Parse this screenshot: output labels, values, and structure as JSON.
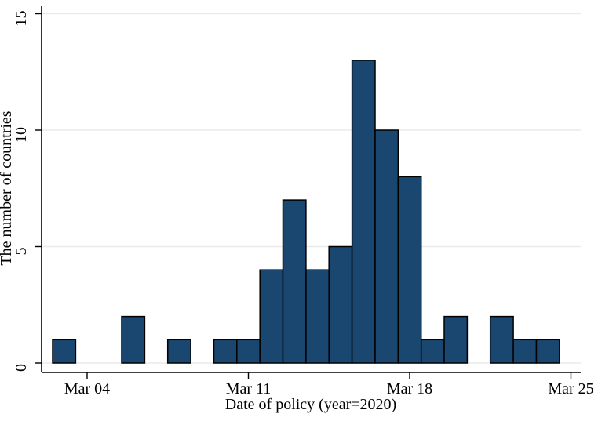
{
  "figure": {
    "background": "#ffffff"
  },
  "chart_data": {
    "type": "bar",
    "subtype": "histogram",
    "title": "",
    "xlabel": "Date of policy (year=2020)",
    "ylabel": "The number of countries",
    "ylim": [
      0,
      15
    ],
    "yticks": [
      0,
      5,
      10,
      15
    ],
    "xticks": [
      {
        "label": "Mar 04",
        "day": 4
      },
      {
        "label": "Mar 11",
        "day": 11
      },
      {
        "label": "Mar 18",
        "day": 18
      },
      {
        "label": "Mar 25",
        "day": 25
      }
    ],
    "grid": "horizontal",
    "legend": "none",
    "bar_color": "#1a476f",
    "bar_edge_color": "#000000",
    "gridline_color": "#eaeaea",
    "axis_color": "#000000",
    "bin_width_days": 1,
    "bins": [
      {
        "date": "Mar 03",
        "day": 3,
        "count": 1
      },
      {
        "date": "Mar 04",
        "day": 4,
        "count": 0
      },
      {
        "date": "Mar 05",
        "day": 5,
        "count": 0
      },
      {
        "date": "Mar 06",
        "day": 6,
        "count": 2
      },
      {
        "date": "Mar 07",
        "day": 7,
        "count": 0
      },
      {
        "date": "Mar 08",
        "day": 8,
        "count": 1
      },
      {
        "date": "Mar 09",
        "day": 9,
        "count": 0
      },
      {
        "date": "Mar 10",
        "day": 10,
        "count": 1
      },
      {
        "date": "Mar 11",
        "day": 11,
        "count": 1
      },
      {
        "date": "Mar 12",
        "day": 12,
        "count": 4
      },
      {
        "date": "Mar 13",
        "day": 13,
        "count": 7
      },
      {
        "date": "Mar 14",
        "day": 14,
        "count": 4
      },
      {
        "date": "Mar 15",
        "day": 15,
        "count": 5
      },
      {
        "date": "Mar 16",
        "day": 16,
        "count": 13
      },
      {
        "date": "Mar 17",
        "day": 17,
        "count": 10
      },
      {
        "date": "Mar 18",
        "day": 18,
        "count": 8
      },
      {
        "date": "Mar 19",
        "day": 19,
        "count": 1
      },
      {
        "date": "Mar 20",
        "day": 20,
        "count": 2
      },
      {
        "date": "Mar 21",
        "day": 21,
        "count": 0
      },
      {
        "date": "Mar 22",
        "day": 22,
        "count": 2
      },
      {
        "date": "Mar 23",
        "day": 23,
        "count": 1
      },
      {
        "date": "Mar 24",
        "day": 24,
        "count": 1
      }
    ]
  }
}
